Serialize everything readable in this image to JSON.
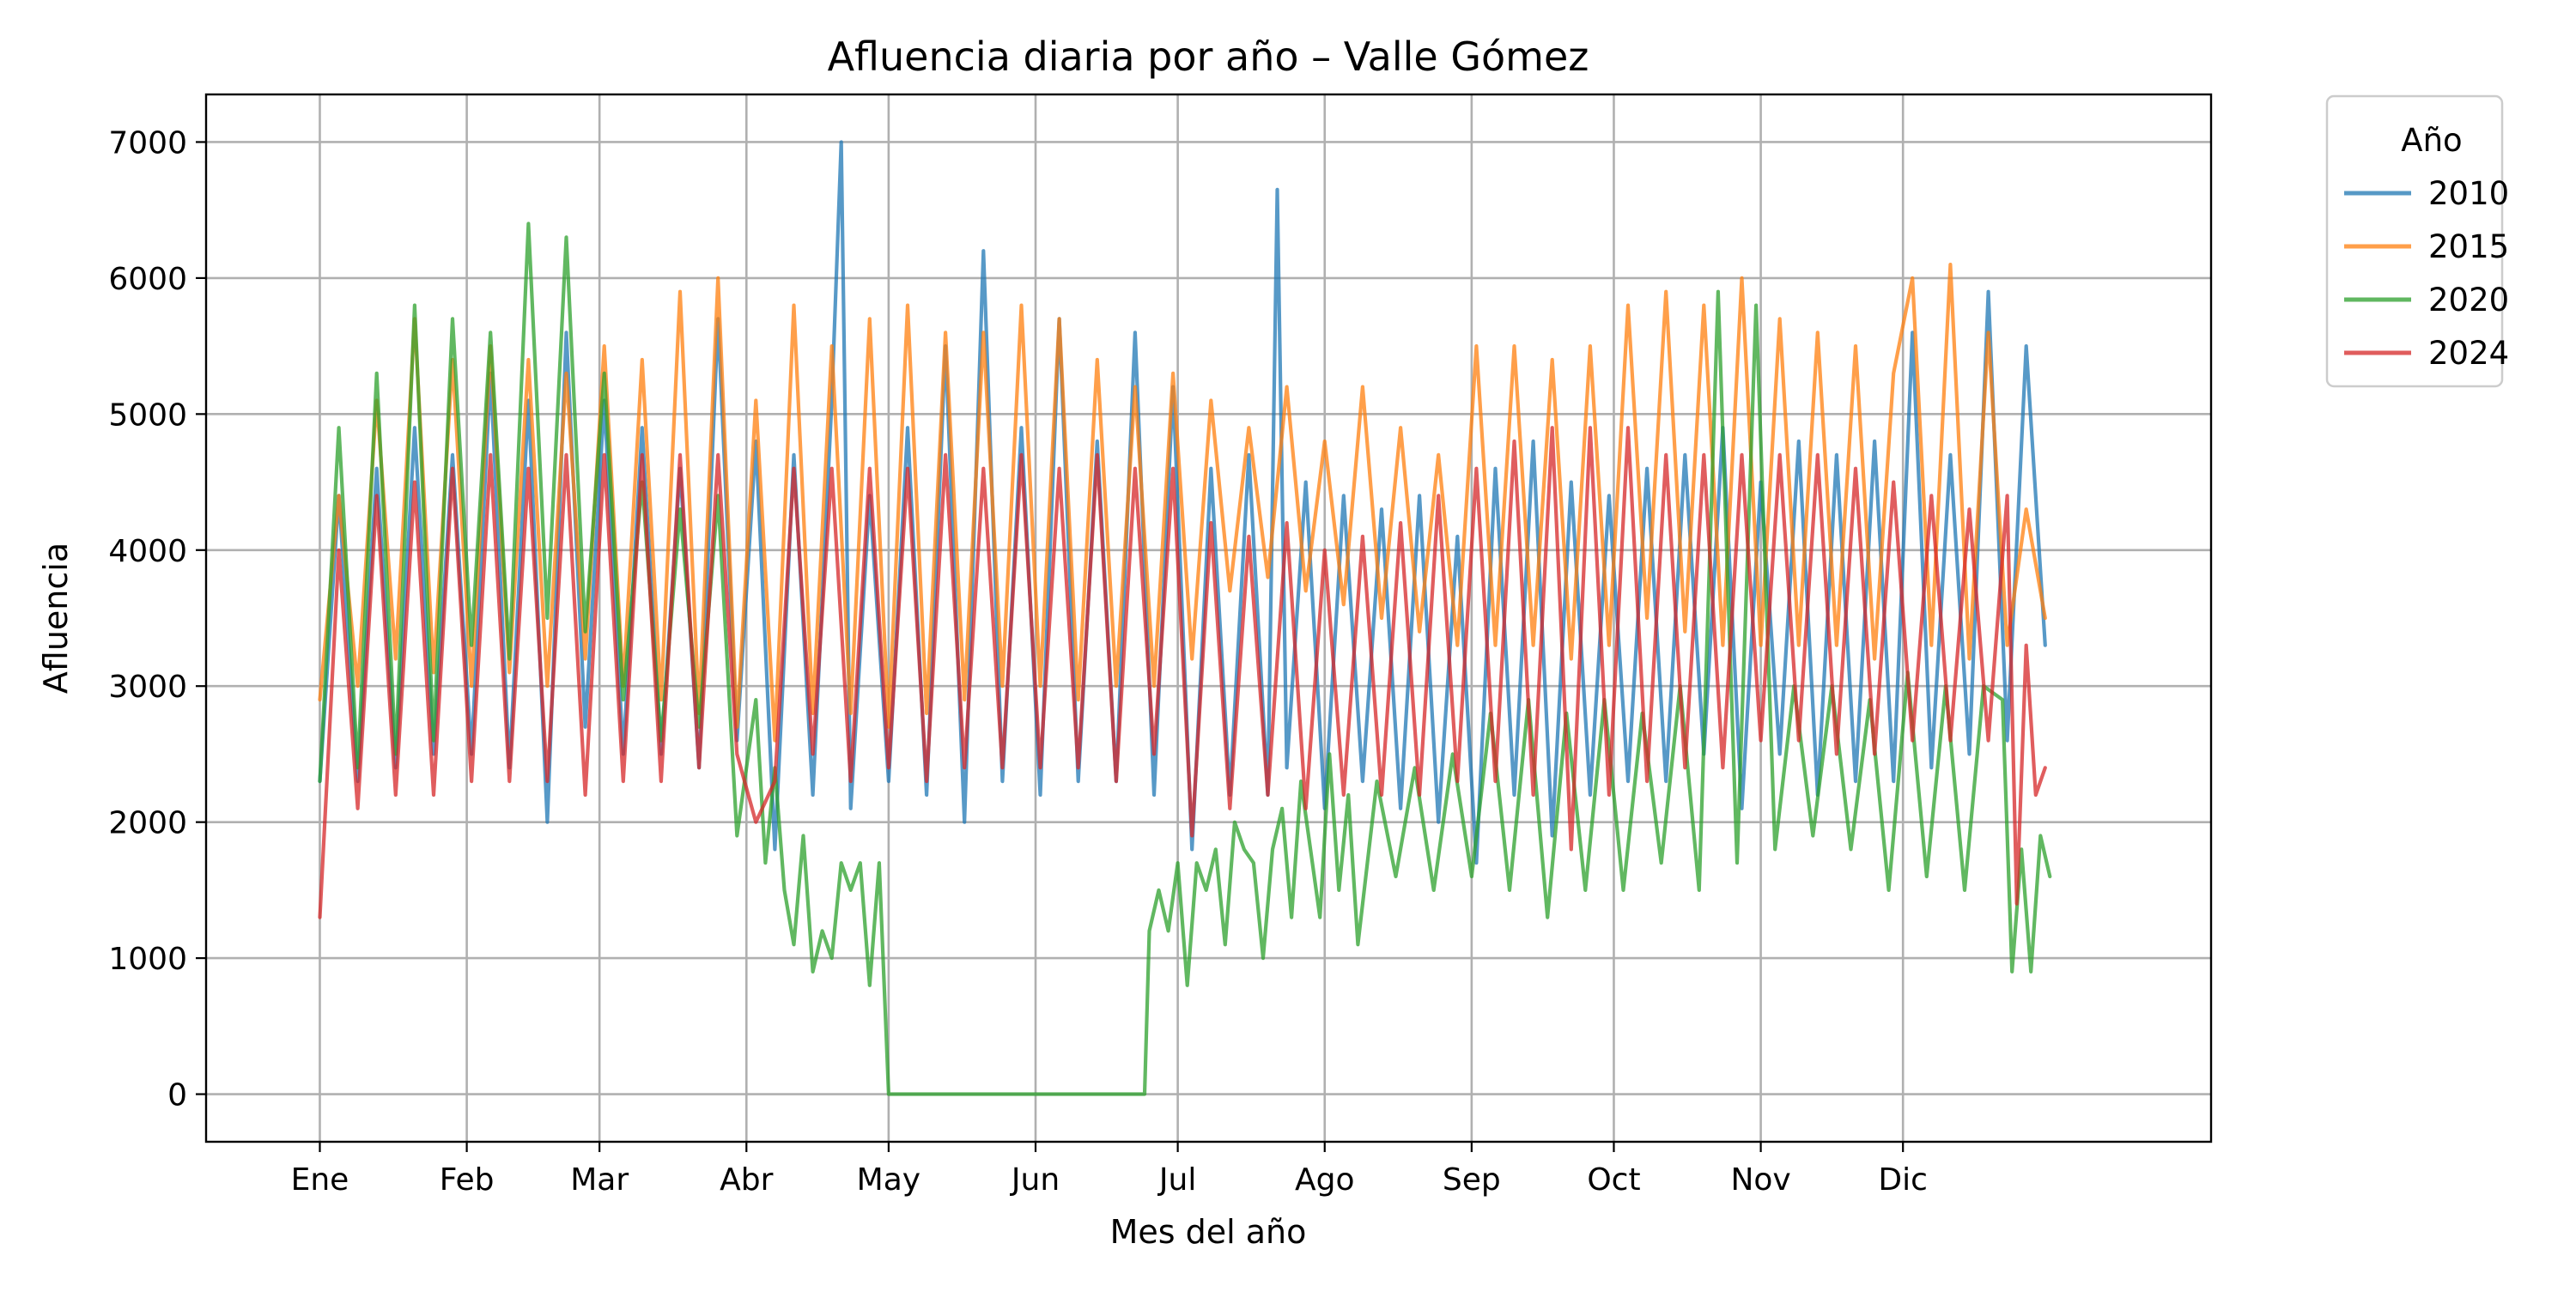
{
  "chart_data": {
    "type": "line",
    "title": "Afluencia diaria por año – Valle Gómez",
    "xlabel": "Mes del año",
    "ylabel": "Afluencia",
    "x_unit": "day of year",
    "xlim": [
      -23,
      400
    ],
    "ylim": [
      -350,
      7350
    ],
    "x_ticks": [
      {
        "label": "Ene",
        "day": 1
      },
      {
        "label": "Feb",
        "day": 32
      },
      {
        "label": "Mar",
        "day": 60
      },
      {
        "label": "Abr",
        "day": 91
      },
      {
        "label": "May",
        "day": 121
      },
      {
        "label": "Jun",
        "day": 152
      },
      {
        "label": "Jul",
        "day": 182
      },
      {
        "label": "Ago",
        "day": 213
      },
      {
        "label": "Sep",
        "day": 244
      },
      {
        "label": "Oct",
        "day": 274
      },
      {
        "label": "Nov",
        "day": 305
      },
      {
        "label": "Dic",
        "day": 335
      }
    ],
    "y_ticks": [
      0,
      1000,
      2000,
      3000,
      4000,
      5000,
      6000,
      7000
    ],
    "grid": true,
    "legend": {
      "title": "Año",
      "placement": "outside-top-right"
    },
    "series": [
      {
        "name": "2010",
        "color": "#1f77b4",
        "x": [
          1,
          5,
          9,
          13,
          17,
          21,
          25,
          29,
          33,
          37,
          41,
          45,
          49,
          53,
          57,
          61,
          65,
          69,
          73,
          77,
          81,
          85,
          89,
          93,
          97,
          101,
          105,
          109,
          111,
          113,
          117,
          121,
          125,
          129,
          133,
          137,
          141,
          145,
          149,
          153,
          157,
          161,
          165,
          169,
          173,
          177,
          181,
          185,
          189,
          193,
          197,
          201,
          203,
          205,
          209,
          213,
          217,
          221,
          225,
          229,
          233,
          237,
          241,
          245,
          249,
          253,
          257,
          261,
          265,
          269,
          273,
          277,
          281,
          285,
          289,
          293,
          297,
          301,
          305,
          309,
          313,
          317,
          321,
          325,
          329,
          333,
          337,
          341,
          345,
          349,
          353,
          357,
          361,
          365
        ],
        "y": [
          2300,
          4400,
          2300,
          4600,
          2400,
          4900,
          2500,
          4700,
          2500,
          5300,
          2400,
          5100,
          2000,
          5600,
          2700,
          5100,
          2500,
          4900,
          2500,
          4600,
          2400,
          5700,
          2600,
          4800,
          1800,
          4700,
          2200,
          5100,
          7000,
          2100,
          4400,
          2300,
          4900,
          2200,
          5500,
          2000,
          6200,
          2300,
          4900,
          2200,
          5700,
          2300,
          4800,
          2300,
          5600,
          2200,
          5200,
          1800,
          4600,
          2200,
          4700,
          2200,
          6650,
          2400,
          4500,
          2100,
          4400,
          2300,
          4300,
          2100,
          4400,
          2000,
          4100,
          1700,
          4600,
          2200,
          4800,
          1900,
          4500,
          2200,
          4400,
          2300,
          4600,
          2300,
          4700,
          2500,
          4900,
          2100,
          4500,
          2500,
          4800,
          2200,
          4700,
          2300,
          4800,
          2300,
          5600,
          2400,
          4700,
          2500,
          5900,
          2600,
          5500,
          3300
        ]
      },
      {
        "name": "2015",
        "color": "#ff7f0e",
        "x": [
          1,
          5,
          9,
          13,
          17,
          21,
          25,
          29,
          33,
          37,
          41,
          45,
          49,
          53,
          57,
          61,
          65,
          69,
          73,
          77,
          81,
          85,
          89,
          93,
          97,
          101,
          105,
          109,
          113,
          117,
          121,
          125,
          129,
          133,
          137,
          141,
          145,
          149,
          153,
          157,
          161,
          165,
          169,
          173,
          177,
          181,
          185,
          189,
          193,
          197,
          201,
          205,
          209,
          213,
          217,
          221,
          225,
          229,
          233,
          237,
          241,
          245,
          249,
          253,
          257,
          261,
          265,
          269,
          273,
          277,
          281,
          285,
          289,
          293,
          297,
          301,
          305,
          309,
          313,
          317,
          321,
          325,
          329,
          333,
          337,
          341,
          345,
          349,
          353,
          357,
          361,
          365
        ],
        "y": [
          2900,
          4400,
          3000,
          5100,
          3200,
          5700,
          3100,
          5400,
          3000,
          5500,
          3100,
          5400,
          3000,
          5300,
          3200,
          5500,
          3000,
          5400,
          2900,
          5900,
          2800,
          6000,
          2700,
          5100,
          2600,
          5800,
          2800,
          5500,
          2800,
          5700,
          2700,
          5800,
          2800,
          5600,
          2900,
          5600,
          3000,
          5800,
          3000,
          5700,
          2900,
          5400,
          3000,
          5200,
          3000,
          5300,
          3200,
          5100,
          3700,
          4900,
          3800,
          5200,
          3700,
          4800,
          3600,
          5200,
          3500,
          4900,
          3400,
          4700,
          3300,
          5500,
          3300,
          5500,
          3300,
          5400,
          3200,
          5500,
          3300,
          5800,
          3500,
          5900,
          3400,
          5800,
          3300,
          6000,
          3300,
          5700,
          3300,
          5600,
          3300,
          5500,
          3200,
          5300,
          6000,
          3300,
          6100,
          3200,
          5600,
          3300,
          4300,
          3500
        ]
      },
      {
        "name": "2020",
        "color": "#2ca02c",
        "x": [
          1,
          5,
          9,
          13,
          17,
          21,
          25,
          29,
          33,
          37,
          41,
          45,
          49,
          53,
          57,
          61,
          65,
          69,
          73,
          77,
          81,
          85,
          89,
          93,
          95,
          97,
          99,
          101,
          103,
          105,
          107,
          109,
          111,
          113,
          115,
          117,
          119,
          121,
          125,
          135,
          145,
          155,
          165,
          175,
          176,
          178,
          180,
          182,
          184,
          186,
          188,
          190,
          192,
          194,
          196,
          198,
          200,
          202,
          204,
          206,
          208,
          210,
          212,
          214,
          216,
          218,
          220,
          224,
          228,
          232,
          236,
          240,
          244,
          248,
          252,
          256,
          260,
          264,
          268,
          272,
          276,
          280,
          284,
          288,
          292,
          296,
          300,
          304,
          308,
          312,
          316,
          320,
          324,
          328,
          332,
          336,
          340,
          344,
          348,
          352,
          356,
          358,
          360,
          362,
          364,
          366
        ],
        "y": [
          2300,
          4900,
          2400,
          5300,
          2500,
          5800,
          2600,
          5700,
          3300,
          5600,
          3200,
          6400,
          3500,
          6300,
          3400,
          5300,
          2900,
          4500,
          2600,
          4300,
          2700,
          4400,
          1900,
          2900,
          1700,
          2400,
          1500,
          1100,
          1900,
          900,
          1200,
          1000,
          1700,
          1500,
          1700,
          800,
          1700,
          0,
          0,
          0,
          0,
          0,
          0,
          0,
          1200,
          1500,
          1200,
          1700,
          800,
          1700,
          1500,
          1800,
          1100,
          2000,
          1800,
          1700,
          1000,
          1800,
          2100,
          1300,
          2300,
          1800,
          1300,
          2500,
          1500,
          2200,
          1100,
          2300,
          1600,
          2400,
          1500,
          2500,
          1600,
          2800,
          1500,
          2900,
          1300,
          2800,
          1500,
          2900,
          1500,
          2800,
          1700,
          3000,
          1500,
          5900,
          1700,
          5800,
          1800,
          3000,
          1900,
          3000,
          1800,
          2900,
          1500,
          3100,
          1600,
          3000,
          1500,
          3000,
          2900,
          900,
          1800,
          900,
          1900,
          1600
        ]
      },
      {
        "name": "2024",
        "color": "#d62728",
        "x": [
          1,
          5,
          9,
          13,
          17,
          21,
          25,
          29,
          33,
          37,
          41,
          45,
          49,
          53,
          57,
          61,
          65,
          69,
          73,
          77,
          81,
          85,
          89,
          93,
          97,
          101,
          105,
          109,
          113,
          117,
          121,
          125,
          129,
          133,
          137,
          141,
          145,
          149,
          153,
          157,
          161,
          165,
          169,
          173,
          177,
          181,
          185,
          189,
          193,
          197,
          201,
          205,
          209,
          213,
          217,
          221,
          225,
          229,
          233,
          237,
          241,
          245,
          249,
          253,
          257,
          261,
          265,
          269,
          273,
          277,
          281,
          285,
          289,
          293,
          297,
          301,
          305,
          309,
          313,
          317,
          321,
          325,
          329,
          333,
          337,
          341,
          345,
          349,
          353,
          357,
          359,
          361,
          363,
          365
        ],
        "y": [
          1300,
          4000,
          2100,
          4400,
          2200,
          4500,
          2200,
          4600,
          2300,
          4700,
          2300,
          4600,
          2300,
          4700,
          2200,
          4700,
          2300,
          4700,
          2300,
          4700,
          2400,
          4700,
          2500,
          2000,
          2300,
          4600,
          2500,
          4600,
          2300,
          4600,
          2400,
          4600,
          2300,
          4700,
          2400,
          4600,
          2400,
          4700,
          2400,
          4600,
          2400,
          4700,
          2300,
          4600,
          2500,
          4600,
          1900,
          4200,
          2100,
          4100,
          2200,
          4200,
          2100,
          4000,
          2200,
          4100,
          2200,
          4200,
          2200,
          4400,
          2300,
          4600,
          2300,
          4800,
          2200,
          4900,
          1800,
          4900,
          2200,
          4900,
          2300,
          4700,
          2400,
          4700,
          2400,
          4700,
          2600,
          4700,
          2600,
          4700,
          2500,
          4600,
          2500,
          4500,
          2600,
          4400,
          2600,
          4300,
          2600,
          4400,
          1400,
          3300,
          2200,
          2400
        ]
      }
    ]
  }
}
